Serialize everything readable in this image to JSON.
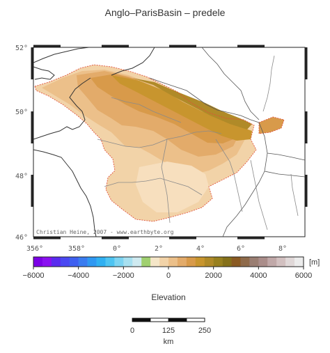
{
  "title": "Anglo–ParisBasin – predele",
  "map": {
    "lat_labels": [
      "52°",
      "50°",
      "48°",
      "46°"
    ],
    "lon_labels": [
      "356°",
      "358°",
      "0°",
      "2°",
      "4°",
      "6°",
      "8°"
    ],
    "credit": "Christian Heine, 2007 - www.earthbyte.org"
  },
  "colorbar": {
    "unit": "[m]",
    "ticks": [
      "−6000",
      "−4000",
      "−2000",
      "0",
      "2000",
      "4000",
      "6000"
    ],
    "label": "Elevation",
    "colors": [
      "#7b00e6",
      "#8a10f0",
      "#5a2bef",
      "#4a48f2",
      "#3e60f0",
      "#3a7cf0",
      "#2f98f2",
      "#30b0f2",
      "#4ec4f2",
      "#7dd4f2",
      "#a8e0f0",
      "#cfeaf0",
      "#a0d070",
      "#f5e6c8",
      "#f2d3a8",
      "#ecc08a",
      "#e3ab6a",
      "#d89a4a",
      "#c8952e",
      "#b08a28",
      "#98801f",
      "#85701a",
      "#8a5a22",
      "#8e6a4a",
      "#9a7e72",
      "#aa8d8a",
      "#c0a8a8",
      "#d2c0c0",
      "#e0d8d8",
      "#ececec"
    ]
  },
  "scalebar": {
    "ticks": [
      "0",
      "125",
      "250"
    ],
    "unit": "km"
  }
}
